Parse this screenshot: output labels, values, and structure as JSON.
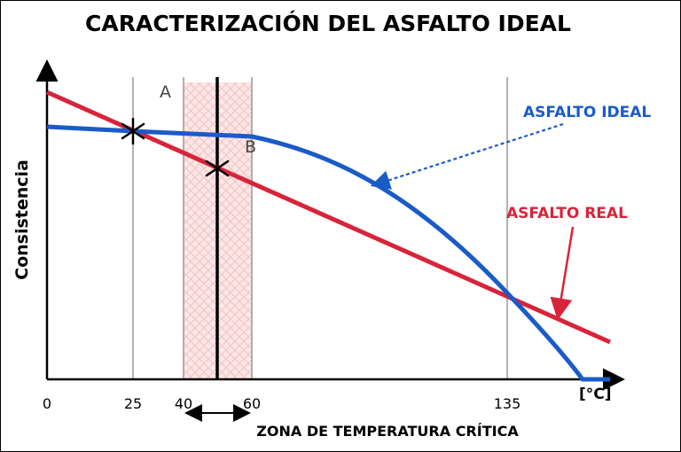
{
  "title": "CARACTERIZACIÓN DEL ASFALTO IDEAL",
  "y_axis_label": "Consistencia",
  "x_unit_label": "[°C]",
  "x_ticks": [
    "0",
    "25",
    "40",
    "60",
    "135"
  ],
  "zone_label": "ZONA DE TEMPERATURA CRÍTICA",
  "point_labels": {
    "a": "A",
    "b": "B"
  },
  "curves": {
    "ideal": {
      "label": "ASFALTO IDEAL",
      "color": "#1a5bc7"
    },
    "real": {
      "label": "ASFALTO REAL",
      "color": "#d8243a"
    }
  },
  "colors": {
    "zone_fill": "#fde6e6",
    "zone_hatch": "#f3c2c2",
    "reference_line": "#999999"
  },
  "icons": [
    "intersection-star-icon",
    "double-arrow-icon",
    "dashed-arrow-icon",
    "arrow-icon"
  ]
}
